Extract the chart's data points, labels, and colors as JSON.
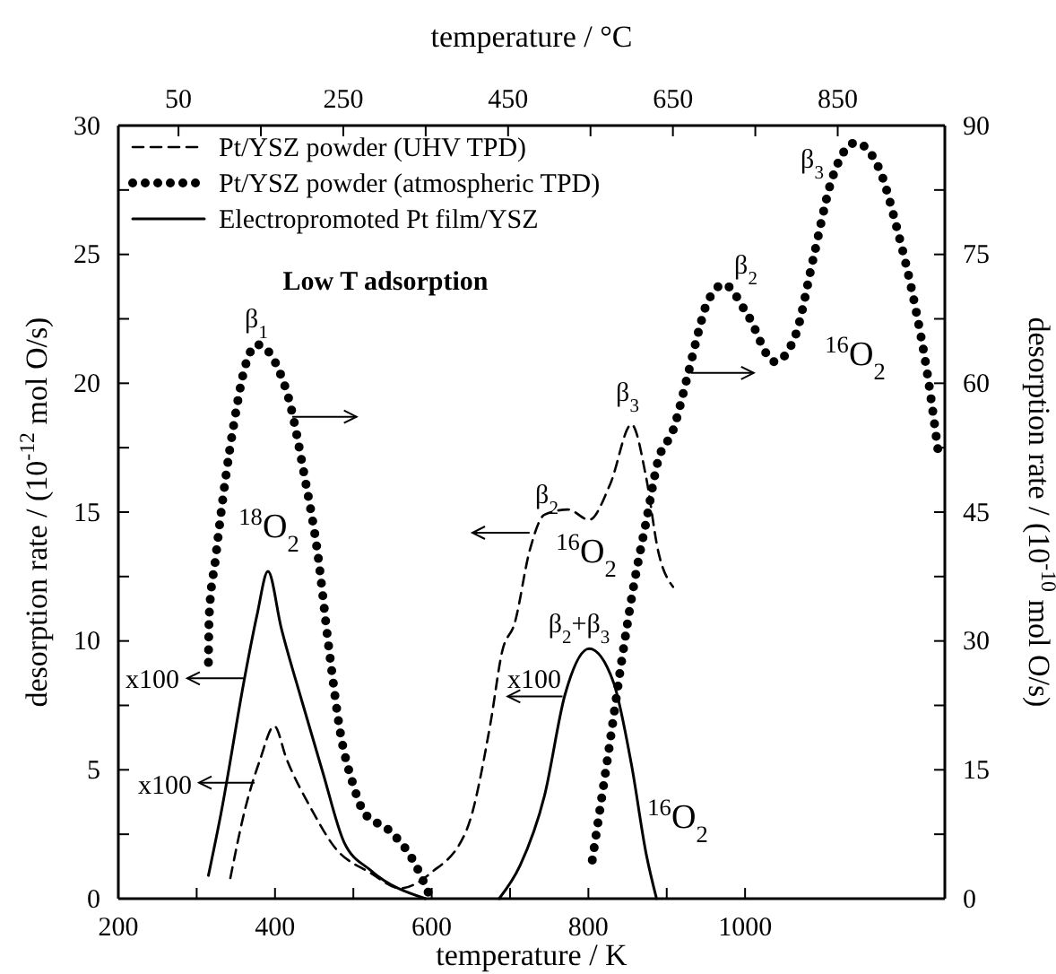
{
  "chart_data": {
    "type": "line",
    "xlabel": "temperature / K",
    "x2label": "temperature / °C",
    "ylabel": "desorption rate / (10$^{-12}$ mol O/s)",
    "y2label": "desorption rate / (10$^{-10}$ mol O/s)",
    "xlim": [
      200,
      1255
    ],
    "xticks": [
      200,
      {
        "value": 300,
        "label": null
      },
      400,
      {
        "value": 500,
        "label": null
      },
      600,
      {
        "value": 700,
        "label": null
      },
      800,
      {
        "value": 900,
        "label": null
      },
      1000
    ],
    "x2lim": [
      -23,
      980
    ],
    "x2ticks": [
      50,
      {
        "value": 150,
        "label": null
      },
      250,
      {
        "value": 350,
        "label": null
      },
      450,
      {
        "value": 550,
        "label": null
      },
      650,
      {
        "value": 750,
        "label": null
      },
      850
    ],
    "ylim": [
      0,
      30
    ],
    "yticks": [
      0,
      {
        "value": 2.5,
        "label": null
      },
      5,
      {
        "value": 7.5,
        "label": null
      },
      10,
      {
        "value": 12.5,
        "label": null
      },
      15,
      {
        "value": 17.5,
        "label": null
      },
      20,
      {
        "value": 22.5,
        "label": null
      },
      25,
      {
        "value": 27.5,
        "label": null
      },
      30
    ],
    "y2lim": [
      0,
      90
    ],
    "y2ticks": [
      0,
      {
        "value": 7.5,
        "label": null
      },
      15,
      {
        "value": 22.5,
        "label": null
      },
      30,
      {
        "value": 37.5,
        "label": null
      },
      45,
      {
        "value": 52.5,
        "label": null
      },
      60,
      {
        "value": 67.5,
        "label": null
      },
      75,
      {
        "value": 82.5,
        "label": null
      },
      90
    ],
    "legend": "top left",
    "series": [
      {
        "name": "Pt/YSZ powder (UHV TPD)",
        "color": "#000000",
        "line_style": "dashed",
        "x": [
          343,
          362,
          381,
          399,
          415,
          446,
          476,
          522,
          560,
          599,
          645,
          675,
          690,
          706,
          725,
          744,
          774,
          801,
          828,
          855,
          874,
          889,
          908
        ],
        "values": [
          0.8,
          3.5,
          5.4,
          6.7,
          5.4,
          3.5,
          2.0,
          1.0,
          0.4,
          1.0,
          2.7,
          6.8,
          9.6,
          10.7,
          13.5,
          14.9,
          15.1,
          14.7,
          16.1,
          18.4,
          16.3,
          13.5,
          12.1
        ]
      },
      {
        "name": "Pt/YSZ powder (atmospheric TPD)",
        "color": "#000000",
        "line_style": "dotted",
        "axis": "y2",
        "x": [
          315,
          316,
          324,
          337,
          347,
          362,
          377,
          415,
          438,
          454,
          469,
          484,
          499,
          514,
          545,
          576,
          599,
          700,
          805,
          828,
          843,
          858,
          874,
          889,
          908,
          927,
          942,
          950,
          973,
          1003,
          1038,
          1064,
          1087,
          1110,
          1141,
          1171,
          1194,
          1217,
          1232,
          1248
        ],
        "values": [
          27.5,
          33,
          39.5,
          49,
          55,
          62,
          64.5,
          59,
          49,
          40.5,
          29,
          19,
          13.5,
          10,
          8,
          4.5,
          0,
          null,
          4.5,
          18.5,
          28,
          36.5,
          44,
          51,
          54.5,
          61,
          66.5,
          69,
          71.5,
          68,
          62.5,
          65.5,
          74.5,
          83.5,
          88,
          85,
          78,
          69,
          61.5,
          51
        ]
      },
      {
        "name": "Electropromoted Pt film/YSZ",
        "color": "#000000",
        "line_style": "solid",
        "x": [
          315,
          331,
          362,
          377,
          391,
          408,
          434,
          461,
          488,
          522,
          592,
          640,
          686,
          713,
          744,
          770,
          801,
          832,
          855,
          874,
          887
        ],
        "values": [
          0.9,
          3.3,
          8.7,
          11,
          12.7,
          10.5,
          7.7,
          4.9,
          2.2,
          1.1,
          0,
          null,
          0,
          1.3,
          4,
          7.9,
          9.7,
          8.4,
          5.2,
          1.7,
          0
        ]
      }
    ],
    "annotations": [
      "β$_{1}$",
      "$^{18}$O$_{2}$",
      "Low T adsorption",
      "x100",
      "x100",
      "β$_{2}$",
      "β$_{3}$",
      "$^{16}$O$_{2}$",
      "β$_{2}$+β$_{3}$",
      "x100",
      "$^{16}$O$_{2}$",
      "β$_{2}$",
      "β$_{3}$",
      "$^{16}$O$_{2}$"
    ]
  }
}
